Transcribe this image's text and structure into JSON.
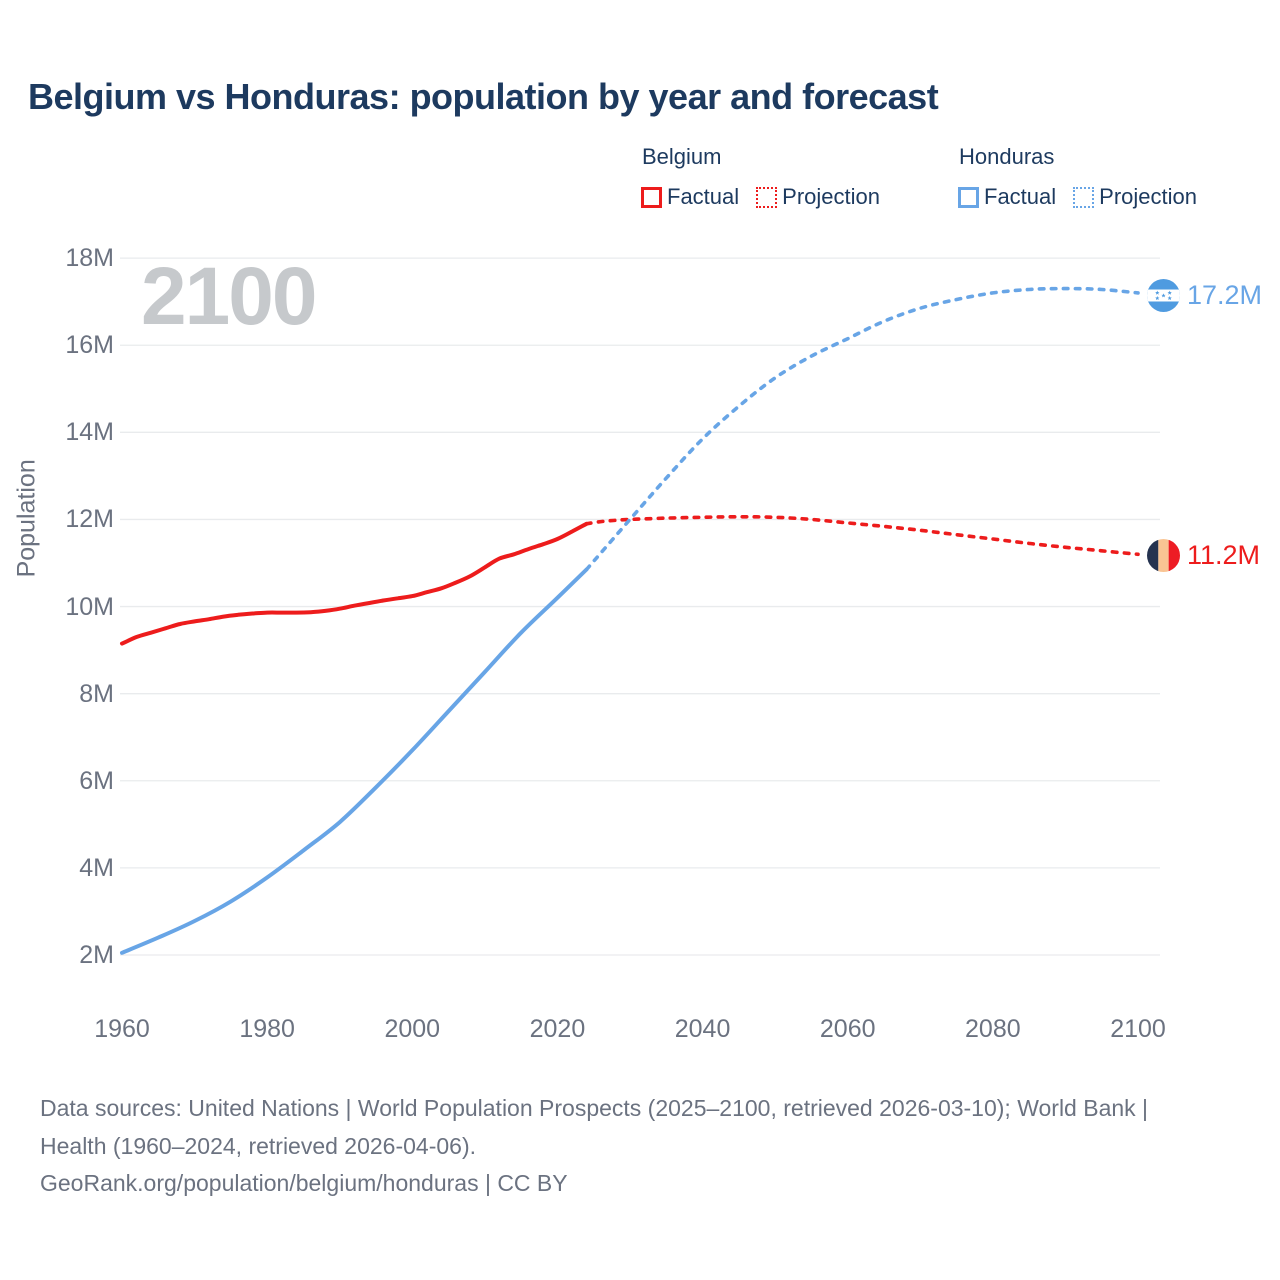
{
  "header": {
    "title": "Belgium vs Honduras: population by year and forecast"
  },
  "legend": {
    "groups": [
      {
        "name": "Belgium",
        "items": [
          {
            "label": "Factual",
            "style": "solid"
          },
          {
            "label": "Projection",
            "style": "dotted"
          }
        ]
      },
      {
        "name": "Honduras",
        "items": [
          {
            "label": "Factual",
            "style": "solid"
          },
          {
            "label": "Projection",
            "style": "dotted"
          }
        ]
      }
    ]
  },
  "watermark": "2100",
  "axes": {
    "y_title": "Population",
    "y_ticks": [
      "2M",
      "4M",
      "6M",
      "8M",
      "10M",
      "12M",
      "14M",
      "16M",
      "18M"
    ],
    "y_tick_values_millions": [
      2,
      4,
      6,
      8,
      10,
      12,
      14,
      16,
      18
    ],
    "x_ticks": [
      "1960",
      "1980",
      "2000",
      "2020",
      "2040",
      "2060",
      "2080",
      "2100"
    ],
    "x_tick_values": [
      1960,
      1980,
      2000,
      2020,
      2040,
      2060,
      2080,
      2100
    ]
  },
  "end_labels": [
    {
      "country": "Honduras",
      "value": "17.2M",
      "flag": "honduras-flag-icon"
    },
    {
      "country": "Belgium",
      "value": "11.2M",
      "flag": "belgium-flag-icon"
    }
  ],
  "footer": {
    "sources": "Data sources: United Nations | World Population Prospects (2025–2100, retrieved 2026-03-10); World Bank | Health (1960–2024, retrieved 2026-04-06).",
    "attribution": "GeoRank.org/population/belgium/honduras | CC BY"
  },
  "colors": {
    "accent_red": "#ed1c1c",
    "accent_blue": "#68a5e6",
    "title_navy": "#1d3a5f",
    "axis_gray": "#6b7280",
    "gridline": "#e9ebed",
    "watermark_gray": "#c6c9cc",
    "flag_blue": "#4f9be0",
    "flag_belgium_black": "#253350",
    "flag_belgium_yellow": "#f9c493",
    "flag_belgium_red": "#ed1c24"
  },
  "chart_data": {
    "type": "line",
    "title": "Belgium vs Honduras: population by year and forecast",
    "xlabel": "",
    "ylabel": "Population",
    "x_range": [
      1960,
      2100
    ],
    "y_range_millions": [
      2,
      18
    ],
    "grid": true,
    "legend_position": "top-right",
    "series": [
      {
        "name": "Belgium Factual",
        "color": "#ed1c1c",
        "style": "solid",
        "points": [
          [
            1960,
            9.15
          ],
          [
            1962,
            9.3
          ],
          [
            1964,
            9.4
          ],
          [
            1966,
            9.5
          ],
          [
            1968,
            9.6
          ],
          [
            1970,
            9.66
          ],
          [
            1972,
            9.71
          ],
          [
            1974,
            9.77
          ],
          [
            1976,
            9.81
          ],
          [
            1978,
            9.84
          ],
          [
            1980,
            9.86
          ],
          [
            1982,
            9.86
          ],
          [
            1984,
            9.86
          ],
          [
            1986,
            9.87
          ],
          [
            1988,
            9.9
          ],
          [
            1990,
            9.95
          ],
          [
            1992,
            10.02
          ],
          [
            1994,
            10.08
          ],
          [
            1996,
            10.14
          ],
          [
            1998,
            10.19
          ],
          [
            2000,
            10.24
          ],
          [
            2002,
            10.33
          ],
          [
            2004,
            10.42
          ],
          [
            2006,
            10.55
          ],
          [
            2008,
            10.7
          ],
          [
            2010,
            10.9
          ],
          [
            2012,
            11.1
          ],
          [
            2014,
            11.2
          ],
          [
            2016,
            11.32
          ],
          [
            2018,
            11.43
          ],
          [
            2020,
            11.55
          ],
          [
            2022,
            11.72
          ],
          [
            2024,
            11.9
          ]
        ]
      },
      {
        "name": "Belgium Projection",
        "color": "#ed1c1c",
        "style": "dashed",
        "points": [
          [
            2024,
            11.9
          ],
          [
            2026,
            11.95
          ],
          [
            2028,
            11.98
          ],
          [
            2030,
            12.0
          ],
          [
            2035,
            12.03
          ],
          [
            2040,
            12.05
          ],
          [
            2045,
            12.06
          ],
          [
            2050,
            12.05
          ],
          [
            2055,
            12.0
          ],
          [
            2060,
            11.92
          ],
          [
            2065,
            11.84
          ],
          [
            2070,
            11.75
          ],
          [
            2075,
            11.65
          ],
          [
            2080,
            11.55
          ],
          [
            2085,
            11.45
          ],
          [
            2090,
            11.36
          ],
          [
            2095,
            11.28
          ],
          [
            2100,
            11.2
          ]
        ]
      },
      {
        "name": "Honduras Factual",
        "color": "#68a5e6",
        "style": "solid",
        "points": [
          [
            1960,
            2.05
          ],
          [
            1965,
            2.4
          ],
          [
            1970,
            2.78
          ],
          [
            1975,
            3.23
          ],
          [
            1980,
            3.78
          ],
          [
            1985,
            4.4
          ],
          [
            1990,
            5.05
          ],
          [
            1995,
            5.85
          ],
          [
            2000,
            6.7
          ],
          [
            2005,
            7.6
          ],
          [
            2010,
            8.5
          ],
          [
            2015,
            9.4
          ],
          [
            2020,
            10.2
          ],
          [
            2024,
            10.85
          ]
        ]
      },
      {
        "name": "Honduras Projection",
        "color": "#68a5e6",
        "style": "dashed",
        "points": [
          [
            2024,
            10.85
          ],
          [
            2030,
            12.0
          ],
          [
            2035,
            12.95
          ],
          [
            2040,
            13.85
          ],
          [
            2045,
            14.6
          ],
          [
            2050,
            15.25
          ],
          [
            2055,
            15.75
          ],
          [
            2060,
            16.15
          ],
          [
            2065,
            16.55
          ],
          [
            2070,
            16.85
          ],
          [
            2075,
            17.05
          ],
          [
            2080,
            17.2
          ],
          [
            2085,
            17.28
          ],
          [
            2090,
            17.3
          ],
          [
            2095,
            17.28
          ],
          [
            2100,
            17.2
          ]
        ]
      }
    ],
    "end_values": {
      "Honduras": 17.2,
      "Belgium": 11.2
    }
  }
}
